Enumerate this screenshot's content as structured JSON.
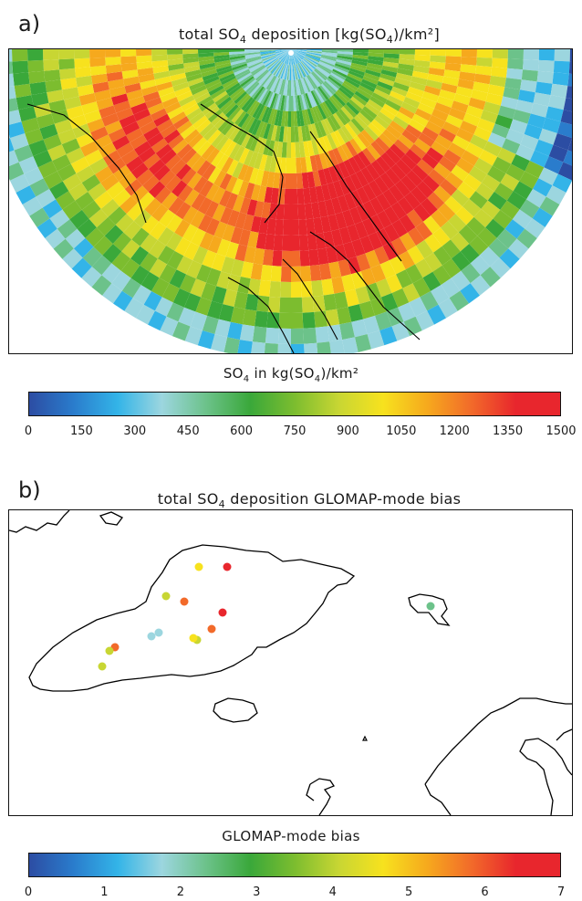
{
  "panel_a": {
    "letter": "a)",
    "title_prefix": "total SO",
    "title_sub": "4",
    "title_suffix": " deposition [kg(SO",
    "title_sub2": "4",
    "title_end": ")/km²]",
    "colorbar": {
      "title_prefix": "SO",
      "title_sub": "4",
      "title_mid": " in kg(SO",
      "title_sub2": "4",
      "title_end": ")/km²",
      "ticks": [
        "0",
        "150",
        "300",
        "450",
        "600",
        "750",
        "900",
        "1050",
        "1200",
        "1350",
        "1500"
      ],
      "range": [
        0,
        1500
      ]
    }
  },
  "panel_b": {
    "letter": "b)",
    "title_prefix": "total SO",
    "title_sub": "4",
    "title_suffix": " deposition GLOMAP-mode bias",
    "colorbar": {
      "title": "GLOMAP-mode bias",
      "ticks": [
        "0",
        "1",
        "2",
        "3",
        "4",
        "5",
        "6",
        "7"
      ],
      "range": [
        0,
        7
      ]
    },
    "station_bias_values": [
      4.6,
      6.2,
      5.9,
      4.3,
      6.4,
      1.8,
      2.0,
      5.8,
      4.0,
      6.1,
      4.2,
      3.9,
      2.2,
      4.8
    ]
  },
  "colors": {
    "scale": [
      "#2c4da3",
      "#2a7ccc",
      "#33b4e8",
      "#9cd6df",
      "#6cc28a",
      "#3aa83a",
      "#7cbd2f",
      "#c8d633",
      "#f7e21e",
      "#f6a91d",
      "#f26a2a",
      "#e8262d",
      "#e8262d"
    ]
  }
}
